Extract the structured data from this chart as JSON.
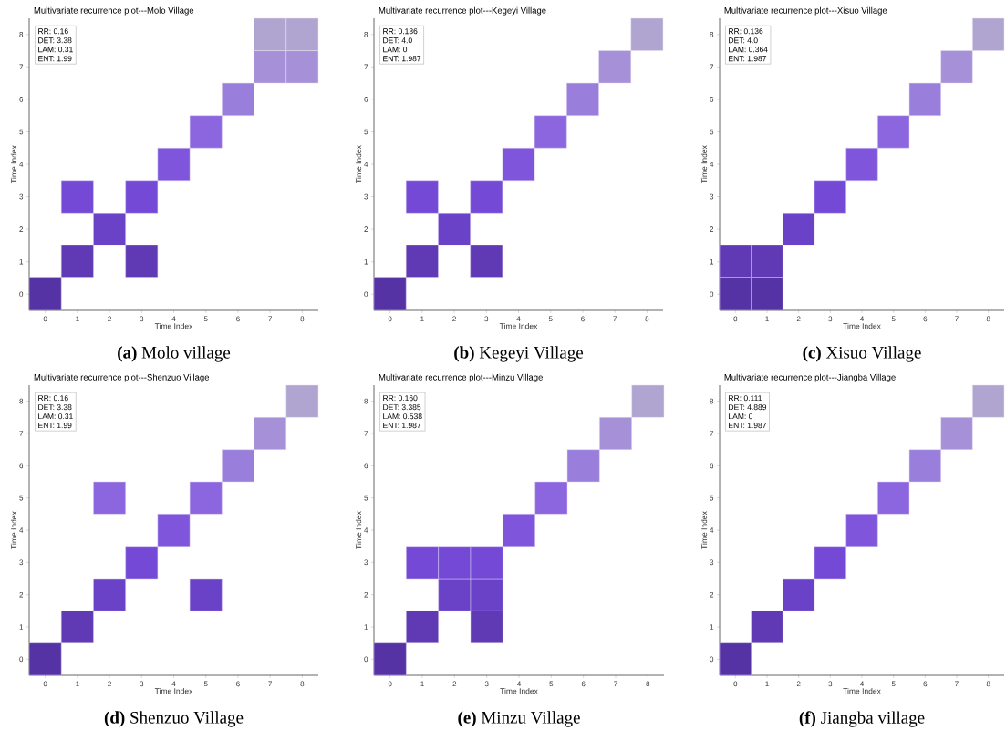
{
  "chart_data": [
    {
      "type": "scatter",
      "title": "Multivariate recurrence plot---Molo Village",
      "xlabel": "Time Index",
      "ylabel": "Time Index",
      "marker": "square",
      "xlim": [
        -0.5,
        8.5
      ],
      "ylim": [
        -0.5,
        8.5
      ],
      "xticks": [
        0,
        1,
        2,
        3,
        4,
        5,
        6,
        7,
        8
      ],
      "yticks": [
        0,
        1,
        2,
        3,
        4,
        5,
        6,
        7,
        8
      ],
      "x": [
        0,
        1,
        3,
        2,
        1,
        3,
        4,
        5,
        6,
        7,
        8,
        7,
        8
      ],
      "values": [
        0,
        1,
        1,
        2,
        3,
        3,
        4,
        5,
        6,
        7,
        7,
        8,
        8
      ],
      "colors": [
        "#5533a4",
        "#6039b4",
        "#6039b4",
        "#6a42c8",
        "#7449d6",
        "#7449d6",
        "#7f55dc",
        "#8c66de",
        "#9a7edc",
        "#a690d8",
        "#a690d8",
        "#b0a4d0",
        "#b0a4d0"
      ],
      "annotations": [
        "RR:   0.16",
        "DET: 3.38",
        "LAM: 0.31",
        "ENT: 1.99",
        "**(a)** Molo village"
      ]
    },
    {
      "type": "scatter",
      "title": "Multivariate recurrence plot---Kegeyi Village",
      "xlabel": "Time Index",
      "ylabel": "Time Index",
      "marker": "square",
      "xlim": [
        -0.5,
        8.5
      ],
      "ylim": [
        -0.5,
        8.5
      ],
      "xticks": [
        0,
        1,
        2,
        3,
        4,
        5,
        6,
        7,
        8
      ],
      "yticks": [
        0,
        1,
        2,
        3,
        4,
        5,
        6,
        7,
        8
      ],
      "x": [
        0,
        1,
        3,
        2,
        1,
        3,
        4,
        5,
        6,
        7,
        8
      ],
      "values": [
        0,
        1,
        1,
        2,
        3,
        3,
        4,
        5,
        6,
        7,
        8
      ],
      "colors": [
        "#5533a4",
        "#6039b4",
        "#6039b4",
        "#6a42c8",
        "#7449d6",
        "#7449d6",
        "#7f55dc",
        "#8c66de",
        "#9a7edc",
        "#a690d8",
        "#b0a4d0"
      ],
      "annotations": [
        "RR:   0.136",
        "DET: 4.0",
        "LAM: 0",
        "ENT: 1.987",
        "**(b)** Kegeyi Village"
      ]
    },
    {
      "type": "scatter",
      "title": "Multivariate recurrence plot---Xisuo Village",
      "xlabel": "Time Index",
      "ylabel": "Time Index",
      "marker": "square",
      "xlim": [
        -0.5,
        8.5
      ],
      "ylim": [
        -0.5,
        8.5
      ],
      "xticks": [
        0,
        1,
        2,
        3,
        4,
        5,
        6,
        7,
        8
      ],
      "yticks": [
        0,
        1,
        2,
        3,
        4,
        5,
        6,
        7,
        8
      ],
      "x": [
        0,
        1,
        0,
        1,
        2,
        3,
        4,
        5,
        6,
        7,
        8
      ],
      "values": [
        0,
        0,
        1,
        1,
        2,
        3,
        4,
        5,
        6,
        7,
        8
      ],
      "colors": [
        "#5533a4",
        "#5533a4",
        "#6039b4",
        "#6039b4",
        "#6a42c8",
        "#7449d6",
        "#7f55dc",
        "#8c66de",
        "#9a7edc",
        "#a690d8",
        "#b0a4d0"
      ],
      "annotations": [
        "RR:   0.136",
        "DET: 4.0",
        "LAM: 0.364",
        "ENT: 1.987",
        "**(c)** Xisuo Village"
      ]
    },
    {
      "type": "scatter",
      "title": "Multivariate recurrence plot---Shenzuo Village",
      "xlabel": "Time Index",
      "ylabel": "Time Index",
      "marker": "square",
      "xlim": [
        -0.5,
        8.5
      ],
      "ylim": [
        -0.5,
        8.5
      ],
      "xticks": [
        0,
        1,
        2,
        3,
        4,
        5,
        6,
        7,
        8
      ],
      "yticks": [
        0,
        1,
        2,
        3,
        4,
        5,
        6,
        7,
        8
      ],
      "x": [
        0,
        1,
        2,
        5,
        3,
        4,
        2,
        5,
        6,
        7,
        8
      ],
      "values": [
        0,
        1,
        2,
        2,
        3,
        4,
        5,
        5,
        6,
        7,
        8
      ],
      "colors": [
        "#5533a4",
        "#6039b4",
        "#6a42c8",
        "#6a42c8",
        "#7449d6",
        "#7f55dc",
        "#8c66de",
        "#8c66de",
        "#9a7edc",
        "#a690d8",
        "#b0a4d0"
      ],
      "annotations": [
        "RR:   0.16",
        "DET: 3.38",
        "LAM: 0.31",
        "ENT: 1.99",
        "**(d)** Shenzuo Village"
      ]
    },
    {
      "type": "scatter",
      "title": "Multivariate recurrence plot---Minzu Village",
      "xlabel": "Time Index",
      "ylabel": "Time Index",
      "marker": "square",
      "xlim": [
        -0.5,
        8.5
      ],
      "ylim": [
        -0.5,
        8.5
      ],
      "xticks": [
        0,
        1,
        2,
        3,
        4,
        5,
        6,
        7,
        8
      ],
      "yticks": [
        0,
        1,
        2,
        3,
        4,
        5,
        6,
        7,
        8
      ],
      "x": [
        0,
        1,
        3,
        2,
        3,
        1,
        2,
        3,
        4,
        5,
        6,
        7,
        8
      ],
      "values": [
        0,
        1,
        1,
        2,
        2,
        3,
        3,
        3,
        4,
        5,
        6,
        7,
        8
      ],
      "colors": [
        "#5533a4",
        "#6039b4",
        "#6039b4",
        "#6a42c8",
        "#6a42c8",
        "#7449d6",
        "#7449d6",
        "#7449d6",
        "#7f55dc",
        "#8c66de",
        "#9a7edc",
        "#a690d8",
        "#b0a4d0"
      ],
      "annotations": [
        "RR:   0.160",
        "DET: 3.385",
        "LAM: 0.538",
        "ENT: 1.987",
        "**(e)** Minzu Village"
      ]
    },
    {
      "type": "scatter",
      "title": "Multivariate recurrence plot---Jiangba Village",
      "xlabel": "Time Index",
      "ylabel": "Time Index",
      "marker": "square",
      "xlim": [
        -0.5,
        8.5
      ],
      "ylim": [
        -0.5,
        8.5
      ],
      "xticks": [
        0,
        1,
        2,
        3,
        4,
        5,
        6,
        7,
        8
      ],
      "yticks": [
        0,
        1,
        2,
        3,
        4,
        5,
        6,
        7,
        8
      ],
      "x": [
        0,
        1,
        2,
        3,
        4,
        5,
        6,
        7,
        8
      ],
      "values": [
        0,
        1,
        2,
        3,
        4,
        5,
        6,
        7,
        8
      ],
      "colors": [
        "#5533a4",
        "#6039b4",
        "#6a42c8",
        "#7449d6",
        "#7f55dc",
        "#8c66de",
        "#9a7edc",
        "#a690d8",
        "#b0a4d0"
      ],
      "annotations": [
        "RR:   0.111",
        "DET: 4.889",
        "LAM: 0",
        "ENT: 1.987",
        "**(f)** Jiangba village"
      ]
    }
  ]
}
